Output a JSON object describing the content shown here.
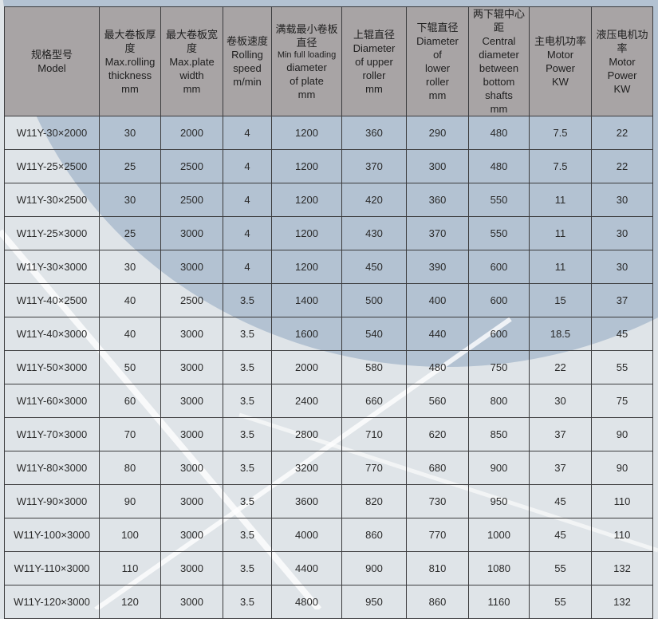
{
  "headers": [
    {
      "zh": "规格型号",
      "en": [
        "Model"
      ]
    },
    {
      "zh": "最大卷板厚度",
      "en": [
        "Max.rolling",
        "thickness",
        "mm"
      ]
    },
    {
      "zh": "最大卷板宽度",
      "en": [
        "Max.plate",
        "width",
        "mm"
      ]
    },
    {
      "zh": "卷板速度",
      "en": [
        "Rolling",
        "speed",
        "m/min"
      ]
    },
    {
      "zh": "满载最小卷板直径",
      "en": [
        "Min full loading",
        "diameter",
        "of plate",
        "mm"
      ]
    },
    {
      "zh": "上辊直径",
      "en": [
        "Diameter",
        "of upper",
        "roller",
        "mm"
      ]
    },
    {
      "zh": "下辊直径",
      "en": [
        "Diameter",
        "of",
        "lower",
        "roller",
        "mm"
      ]
    },
    {
      "zh": "两下辊中心距",
      "en": [
        "Central",
        "diameter",
        "between",
        "bottom shafts",
        "mm"
      ]
    },
    {
      "zh": "主电机功率",
      "en": [
        "Motor",
        "Power",
        "KW"
      ]
    },
    {
      "zh": "液压电机功率",
      "en": [
        "Motor",
        "Power",
        "KW"
      ]
    }
  ],
  "rows": [
    [
      "W11Y-30×2000",
      "30",
      "2000",
      "4",
      "1200",
      "360",
      "290",
      "480",
      "7.5",
      "22"
    ],
    [
      "W11Y-25×2500",
      "25",
      "2500",
      "4",
      "1200",
      "370",
      "300",
      "480",
      "7.5",
      "22"
    ],
    [
      "W11Y-30×2500",
      "30",
      "2500",
      "4",
      "1200",
      "420",
      "360",
      "550",
      "11",
      "30"
    ],
    [
      "W11Y-25×3000",
      "25",
      "3000",
      "4",
      "1200",
      "430",
      "370",
      "550",
      "11",
      "30"
    ],
    [
      "W11Y-30×3000",
      "30",
      "3000",
      "4",
      "1200",
      "450",
      "390",
      "600",
      "11",
      "30"
    ],
    [
      "W11Y-40×2500",
      "40",
      "2500",
      "3.5",
      "1400",
      "500",
      "400",
      "600",
      "15",
      "37"
    ],
    [
      "W11Y-40×3000",
      "40",
      "3000",
      "3.5",
      "1600",
      "540",
      "440",
      "600",
      "18.5",
      "45"
    ],
    [
      "W11Y-50×3000",
      "50",
      "3000",
      "3.5",
      "2000",
      "580",
      "480",
      "750",
      "22",
      "55"
    ],
    [
      "W11Y-60×3000",
      "60",
      "3000",
      "3.5",
      "2400",
      "660",
      "560",
      "800",
      "30",
      "75"
    ],
    [
      "W11Y-70×3000",
      "70",
      "3000",
      "3.5",
      "2800",
      "710",
      "620",
      "850",
      "37",
      "90"
    ],
    [
      "W11Y-80×3000",
      "80",
      "3000",
      "3.5",
      "3200",
      "770",
      "680",
      "900",
      "37",
      "90"
    ],
    [
      "W11Y-90×3000",
      "90",
      "3000",
      "3.5",
      "3600",
      "820",
      "730",
      "950",
      "45",
      "110"
    ],
    [
      "W11Y-100×3000",
      "100",
      "3000",
      "3.5",
      "4000",
      "860",
      "770",
      "1000",
      "45",
      "110"
    ],
    [
      "W11Y-110×3000",
      "110",
      "3000",
      "3.5",
      "4400",
      "900",
      "810",
      "1080",
      "55",
      "132"
    ],
    [
      "W11Y-120×3000",
      "120",
      "3000",
      "3.5",
      "4800",
      "950",
      "860",
      "1160",
      "55",
      "132"
    ]
  ]
}
